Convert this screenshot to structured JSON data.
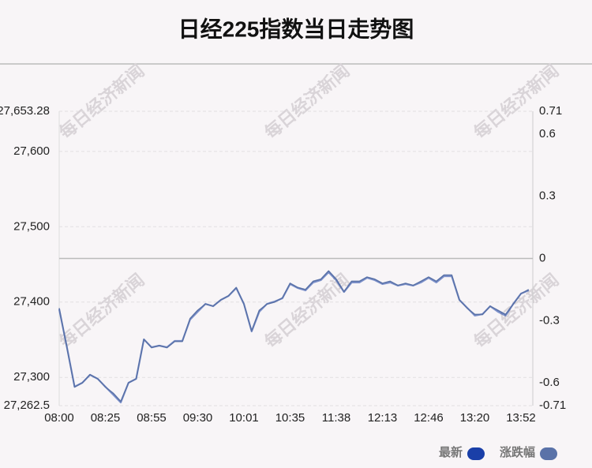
{
  "chart_data": {
    "type": "line",
    "title": "日经225指数当日走势图",
    "watermark": "每日经济新闻",
    "categories": [
      "08:00",
      null,
      null,
      null,
      null,
      null,
      "08:25",
      null,
      null,
      null,
      null,
      null,
      "08:55",
      null,
      null,
      null,
      null,
      null,
      "09:30",
      null,
      null,
      null,
      null,
      null,
      "10:01",
      null,
      null,
      null,
      null,
      null,
      "10:35",
      null,
      null,
      null,
      null,
      null,
      "11:38",
      null,
      null,
      null,
      null,
      null,
      "12:13",
      null,
      null,
      null,
      null,
      null,
      "12:46",
      null,
      null,
      null,
      null,
      null,
      "13:20",
      null,
      null,
      null,
      null,
      null,
      "13:52",
      null
    ],
    "series": [
      {
        "name": "最新",
        "color": "#1a3fa8",
        "values": [
          27390.3,
          27340.0,
          27287.6,
          27292.9,
          27303.4,
          27298.1,
          27287.6,
          27277.2,
          27266.7,
          27292.9,
          27298.1,
          27350.5,
          27340.0,
          27342.1,
          27340.0,
          27348.4,
          27348.4,
          27376.7,
          27387.2,
          27397.7,
          27394.5,
          27402.9,
          27408.1,
          27418.6,
          27397.7,
          27361.0,
          27387.2,
          27397.7,
          27400.8,
          27405.0,
          27423.9,
          27418.6,
          27415.5,
          27426.0,
          27429.1,
          27439.6,
          27429.1,
          27413.4,
          27426.0,
          27426.0,
          27432.2,
          27429.1,
          27423.9,
          27426.0,
          27421.8,
          27423.9,
          27421.8,
          27426.0,
          27432.2,
          27426.0,
          27434.3,
          27434.3,
          27402.9,
          27392.5,
          27382.0,
          27384.0,
          27394.5,
          27387.2,
          27382.0,
          27397.7,
          27411.3,
          27415.5
        ]
      },
      {
        "name": "涨跌幅",
        "color": "#5a72a8",
        "axis": "y2",
        "values": [
          -0.24,
          -0.43,
          -0.62,
          -0.6,
          -0.56,
          -0.58,
          -0.62,
          -0.65,
          -0.69,
          -0.6,
          -0.58,
          -0.39,
          -0.43,
          -0.42,
          -0.43,
          -0.4,
          -0.4,
          -0.29,
          -0.25,
          -0.22,
          -0.23,
          -0.2,
          -0.18,
          -0.14,
          -0.22,
          -0.35,
          -0.25,
          -0.22,
          -0.21,
          -0.19,
          -0.12,
          -0.14,
          -0.15,
          -0.11,
          -0.1,
          -0.06,
          -0.1,
          -0.16,
          -0.11,
          -0.11,
          -0.09,
          -0.1,
          -0.12,
          -0.11,
          -0.13,
          -0.12,
          -0.13,
          -0.11,
          -0.09,
          -0.11,
          -0.08,
          -0.08,
          -0.2,
          -0.24,
          -0.27,
          -0.27,
          -0.23,
          -0.25,
          -0.27,
          -0.22,
          -0.17,
          -0.15
        ]
      }
    ],
    "ylim": [
      27262.5,
      27653.28
    ],
    "yticks": [
      {
        "value": 27262.5,
        "label": "27,262.5"
      },
      {
        "value": 27300,
        "label": "27,300"
      },
      {
        "value": 27400,
        "label": "27,400"
      },
      {
        "value": 27500,
        "label": "27,500"
      },
      {
        "value": 27600,
        "label": "27,600"
      },
      {
        "value": 27653.28,
        "label": "27,653.28"
      }
    ],
    "y2lim": [
      -0.71,
      0.71
    ],
    "y2ticks": [
      -0.71,
      -0.6,
      -0.3,
      0,
      0.3,
      0.6,
      0.71
    ],
    "grid": true,
    "legend": "bottom-right"
  }
}
